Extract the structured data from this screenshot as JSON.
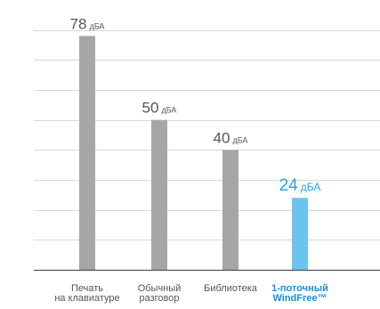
{
  "chart_data": {
    "type": "bar",
    "title": "",
    "xlabel": "",
    "ylabel": "",
    "ylim": [
      0,
      90
    ],
    "unit": "дБА",
    "grid": true,
    "categories": [
      [
        "Печать",
        "на клавиатуре"
      ],
      [
        "Обычный",
        "разговор"
      ],
      [
        "Библиотека"
      ],
      [
        "1-поточный",
        "WindFree™"
      ]
    ],
    "values": [
      78,
      50,
      40,
      24
    ],
    "highlight_index": 3,
    "colors": {
      "bar": "#a6a6a6",
      "highlight_bar": "#6cc3f0",
      "grid": "#d9d9d9",
      "baseline": "#555555",
      "label": "#555555",
      "highlight_label": "#29a3e6"
    }
  }
}
